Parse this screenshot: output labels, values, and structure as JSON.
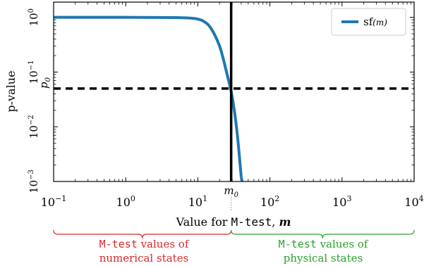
{
  "chart_data": {
    "type": "line",
    "title": "",
    "xlabel_prefix": "Value for ",
    "xlabel_code": "M-test",
    "xlabel_suffix": ", ",
    "xlabel_var": "m",
    "ylabel": "p-value",
    "x_scale": "log",
    "y_scale": "log",
    "xlim": [
      0.1,
      10000
    ],
    "ylim": [
      0.001,
      1.9
    ],
    "x_tick_values": [
      0.1,
      1,
      10,
      100,
      1000,
      10000
    ],
    "x_ticks": [
      {
        "base": "10",
        "exp": "−1"
      },
      {
        "base": "10",
        "exp": "0"
      },
      {
        "base": "10",
        "exp": "1"
      },
      {
        "base": "10",
        "exp": "2"
      },
      {
        "base": "10",
        "exp": "3"
      },
      {
        "base": "10",
        "exp": "4"
      }
    ],
    "y_tick_values": [
      0.001,
      0.01,
      0.1,
      1
    ],
    "y_ticks": [
      {
        "base": "10",
        "exp": "−3"
      },
      {
        "base": "10",
        "exp": "−2"
      },
      {
        "base": "10",
        "exp": "−1"
      },
      {
        "base": "10",
        "exp": "0"
      }
    ],
    "legend": {
      "position": "top-right",
      "label_prefix": "sf",
      "label_arg": "(m)"
    },
    "series": [
      {
        "name": "sf(m)",
        "color": "#1f77b4",
        "x": [
          0.1,
          1,
          5,
          8,
          10,
          12,
          15,
          20,
          25,
          30,
          35,
          40
        ],
        "y": [
          1,
          1,
          0.99,
          0.97,
          0.93,
          0.85,
          0.65,
          0.3,
          0.1,
          0.035,
          0.008,
          0.0012
        ]
      }
    ],
    "vertical_line": {
      "x": 29,
      "label_base": "m",
      "label_sub": "0",
      "style": "solid",
      "color": "#000000"
    },
    "horizontal_line": {
      "y": 0.05,
      "label_base": "p",
      "label_sub": "0",
      "style": "dashed",
      "color": "#000000"
    }
  },
  "annotations": {
    "left_region": {
      "code": "M-test",
      "line1_rest": " values of",
      "line2": "numerical states",
      "color": "#d62728"
    },
    "right_region": {
      "code": "M-test",
      "line1_rest": " values of",
      "line2": "physical states",
      "color": "#2ca02c"
    }
  }
}
